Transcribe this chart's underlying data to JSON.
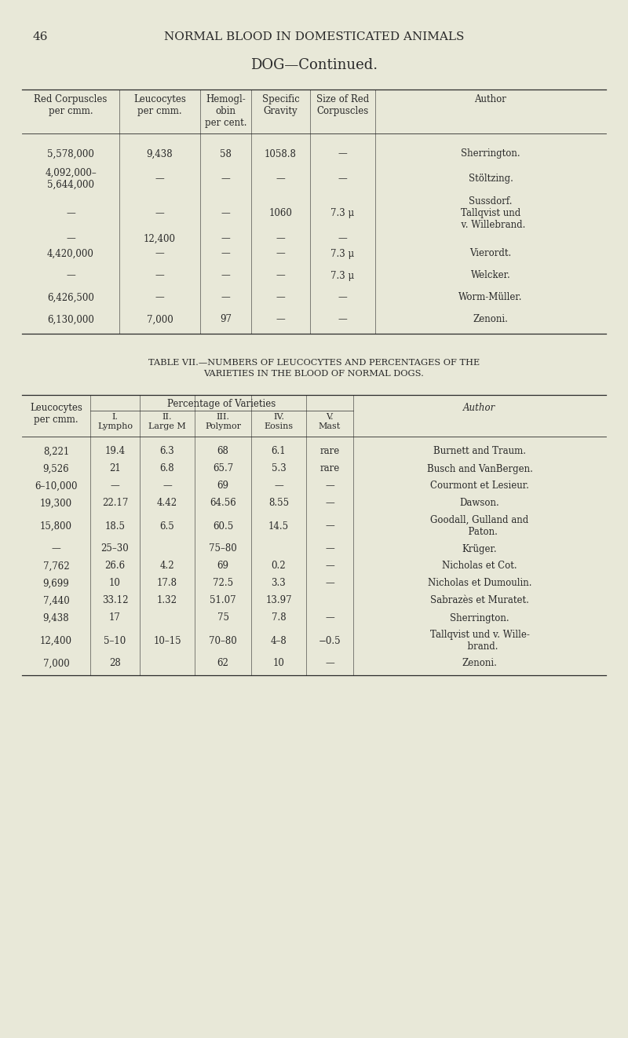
{
  "bg_color": "#e8e8d8",
  "text_color": "#2a2a2a",
  "page_number": "46",
  "page_header": "NORMAL BLOOD IN DOMESTICATED ANIMALS",
  "doc_title": "DOG—Continued.",
  "table1": {
    "headers": [
      "Red Corpuscles\nper cmm.",
      "Leucocytes\nper cmm.",
      "Hemogl-\nobin\nper cent.",
      "Specific\nGravity",
      "Size of Red\nCorpuscles",
      "Author"
    ],
    "rows": [
      [
        "5,578,000",
        "9,438",
        "58",
        "1058.8",
        "—",
        "Sherrington."
      ],
      [
        "4,092,000–\n5,644,000",
        "—",
        "—",
        "—",
        "—",
        "Stöltzing."
      ],
      [
        "—",
        "—",
        "—",
        "1060",
        "7.3 μ",
        "Sussdorf.\nTallqvist und\n  v. Willebrand."
      ],
      [
        "—",
        "12,400",
        "—",
        "—",
        "—",
        ""
      ],
      [
        "4,420,000",
        "—",
        "—",
        "—",
        "7.3 μ",
        "Vierordt."
      ],
      [
        "—",
        "—",
        "—",
        "—",
        "7.3 μ",
        "Welcker."
      ],
      [
        "6,426,500",
        "—",
        "—",
        "—",
        "—",
        "Worm-Müller."
      ],
      [
        "6,130,000",
        "7,000",
        "97",
        "—",
        "—",
        "Zenoni."
      ]
    ]
  },
  "table2_title_line1": "TABLE VII.—NUMBERS OF LEUCOCYTES AND PERCENTAGES OF THE",
  "table2_title_line2": "VARIETIES IN THE BLOOD OF NORMAL DOGS.",
  "table2": {
    "rows": [
      [
        "8,221",
        "19.4",
        "6.3",
        "68",
        "6.1",
        "rare",
        "Burnett and Traum."
      ],
      [
        "9,526",
        "21",
        "6.8",
        "65.7",
        "5.3",
        "rare",
        "Busch and VanBergen."
      ],
      [
        "6–10,000",
        "—",
        "—",
        "69",
        "—",
        "—",
        "Courmont et Lesieur."
      ],
      [
        "19,300",
        "22.17",
        "4.42",
        "64.56",
        "8.55",
        "—",
        "Dawson."
      ],
      [
        "15,800",
        "18.5",
        "6.5",
        "60.5",
        "14.5",
        "—",
        "Goodall, Gulland and\n  Paton."
      ],
      [
        "—",
        "25–30",
        "",
        "75–80",
        "",
        "—",
        "Krüger."
      ],
      [
        "7,762",
        "26.6",
        "4.2",
        "69",
        "0.2",
        "—",
        "Nicholas et Cot."
      ],
      [
        "9,699",
        "10",
        "17.8",
        "72.5",
        "3.3",
        "—",
        "Nicholas et Dumoulin."
      ],
      [
        "7,440",
        "33.12",
        "1.32",
        "51.07",
        "13.97",
        "",
        "Sabrazès et Muratet."
      ],
      [
        "9,438",
        "17",
        "",
        "75",
        "7.8",
        "—",
        "Sherrington."
      ],
      [
        "12,400",
        "5–10",
        "10–15",
        "70–80",
        "4–8",
        "−0.5",
        "Tallqvist und v. Wille-\n  brand."
      ],
      [
        "7,000",
        "28",
        "",
        "62",
        "10",
        "—",
        "Zenoni."
      ]
    ]
  }
}
